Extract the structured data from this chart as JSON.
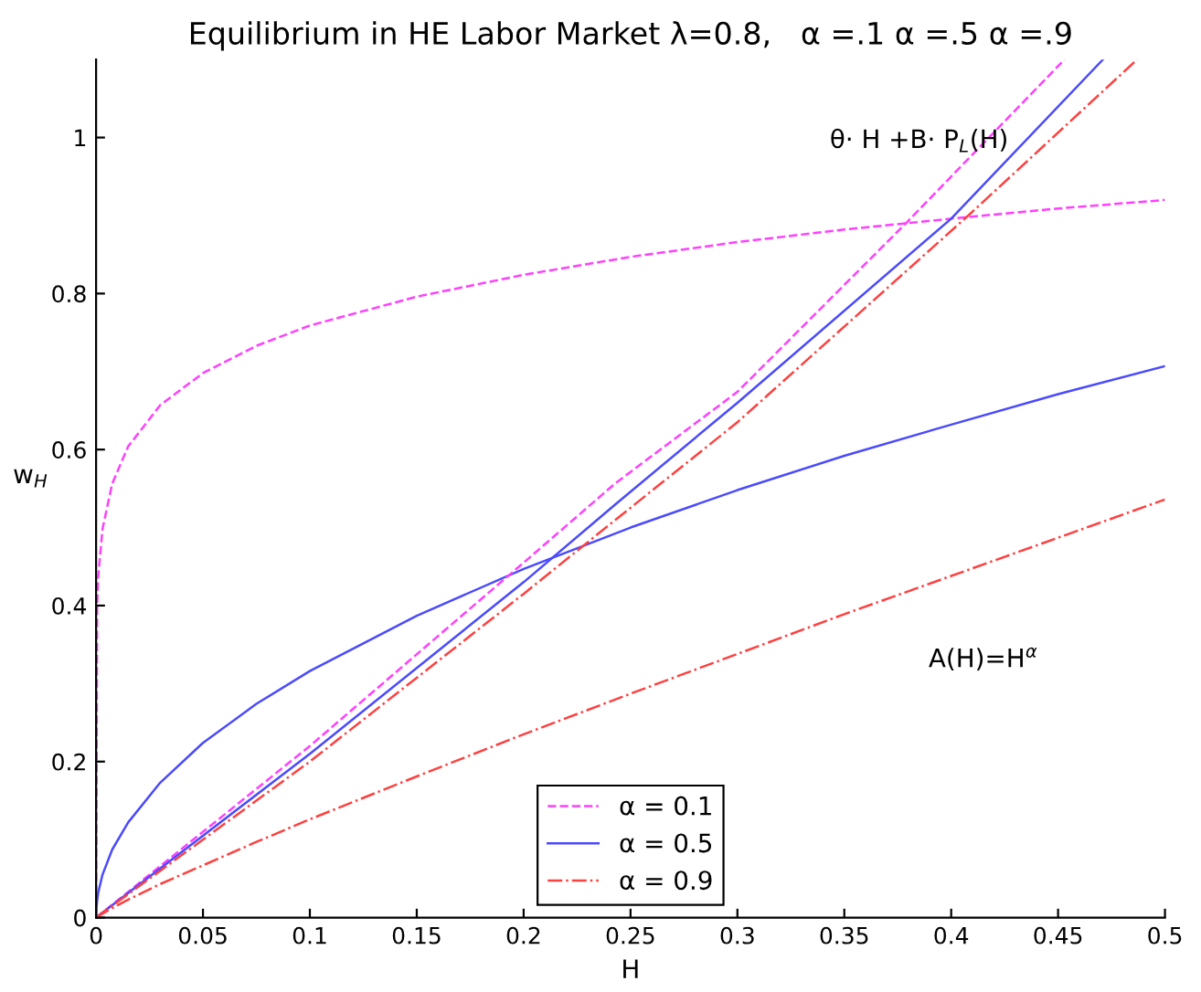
{
  "chart_data": {
    "type": "line",
    "title": "Equilibrium in HE Labor Market λ=0.8,   α =.1 α =.5 α =.9",
    "xlabel": "H",
    "ylabel": "w$_{H}$",
    "annotations": [
      "θ· H +B· P$_{L}$(H)",
      "A(H)=H$^{α}$"
    ],
    "xlim": [
      0,
      0.5
    ],
    "ylim": [
      0,
      1.1
    ],
    "xticks": [
      0,
      0.05,
      0.1,
      0.15,
      0.2,
      0.25,
      0.3,
      0.35,
      0.4,
      0.45,
      0.5
    ],
    "yticks": [
      0,
      0.2,
      0.4,
      0.6,
      0.8,
      1
    ],
    "grid": false,
    "legend": "bottom",
    "marker": "none",
    "series": [
      {
        "name": "α = 0.1",
        "color": "#ff40ff",
        "line_style": "dashed",
        "x": [
          0,
          0.0005,
          0.001,
          0.003,
          0.0075,
          0.015,
          0.03,
          0.05,
          0.075,
          0.1,
          0.15,
          0.2,
          0.25,
          0.3,
          0.35,
          0.4,
          0.45,
          0.5
        ],
        "values": [
          0,
          0.401,
          0.437,
          0.498,
          0.556,
          0.604,
          0.657,
          0.698,
          0.733,
          0.759,
          0.796,
          0.824,
          0.847,
          0.866,
          0.882,
          0.896,
          0.909,
          0.92
        ]
      },
      {
        "name": "α = 0.5",
        "color": "#4a4aff",
        "line_style": "solid",
        "x": [
          0,
          0.0001,
          0.0005,
          0.001,
          0.003,
          0.0075,
          0.015,
          0.03,
          0.05,
          0.075,
          0.1,
          0.15,
          0.2,
          0.25,
          0.3,
          0.35,
          0.4,
          0.45,
          0.5
        ],
        "values": [
          0,
          0.01,
          0.022,
          0.032,
          0.055,
          0.087,
          0.122,
          0.173,
          0.224,
          0.274,
          0.316,
          0.387,
          0.447,
          0.5,
          0.548,
          0.592,
          0.632,
          0.671,
          0.707
        ]
      },
      {
        "name": "α = 0.9",
        "color": "#ff4040",
        "line_style": "dashdot",
        "x": [
          0,
          0.0001,
          0.0005,
          0.001,
          0.003,
          0.0075,
          0.015,
          0.03,
          0.05,
          0.075,
          0.1,
          0.15,
          0.2,
          0.25,
          0.3,
          0.35,
          0.4,
          0.45,
          0.5
        ],
        "values": [
          0,
          0,
          0.001,
          0.002,
          0.005,
          0.012,
          0.023,
          0.043,
          0.067,
          0.097,
          0.126,
          0.181,
          0.235,
          0.287,
          0.338,
          0.389,
          0.438,
          0.487,
          0.536
        ]
      },
      {
        "color": "#ff40ff",
        "line_style": "dashed",
        "x": [
          0,
          0.1,
          0.2,
          0.243,
          0.3,
          0.3795,
          0.453
        ],
        "values": [
          0,
          0.22,
          0.455,
          0.557,
          0.674,
          0.892,
          1.1
        ]
      },
      {
        "color": "#4a4aff",
        "line_style": "solid",
        "x": [
          0,
          0.1,
          0.2,
          0.243,
          0.3,
          0.4,
          0.471
        ],
        "values": [
          0,
          0.21,
          0.43,
          0.53,
          0.66,
          0.896,
          1.1
        ]
      },
      {
        "color": "#ff4040",
        "line_style": "dashdot",
        "x": [
          0,
          0.1,
          0.2,
          0.243,
          0.3,
          0.408,
          0.487
        ],
        "values": [
          0,
          0.2,
          0.415,
          0.51,
          0.635,
          0.9,
          1.1
        ]
      }
    ]
  }
}
